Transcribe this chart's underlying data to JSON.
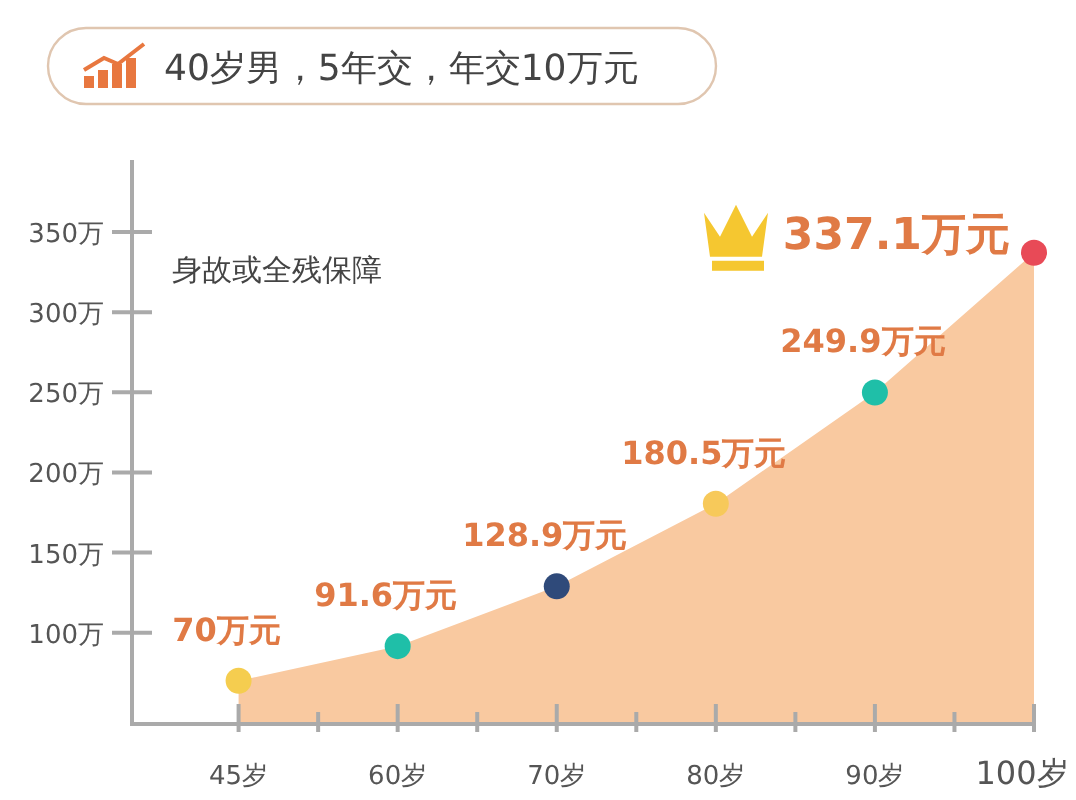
{
  "chart_data": {
    "type": "area",
    "title": "40岁男，5年交，年交10万元",
    "annotations": [
      "身故或全残保障"
    ],
    "categories": [
      "45岁",
      "60岁",
      "70岁",
      "80岁",
      "90岁",
      "100岁"
    ],
    "values": [
      70,
      91.6,
      128.9,
      180.5,
      249.9,
      337.1
    ],
    "value_labels": [
      "70万元",
      "91.6万元",
      "128.9万元",
      "180.5万元",
      "249.9万元",
      "337.1万元"
    ],
    "color": "#f9c9a0",
    "colors": [
      "#f5cd4f",
      "#1fbfa8",
      "#2f4a7a",
      "#f7c95a",
      "#1fbfa8",
      "#e84a57"
    ],
    "marker": "circle",
    "ylim": [
      43,
      395
    ],
    "yticks": [
      {
        "value": 100,
        "label": "100万"
      },
      {
        "value": 150,
        "label": "150万"
      },
      {
        "value": 200,
        "label": "200万"
      },
      {
        "value": 250,
        "label": "250万"
      },
      {
        "value": 300,
        "label": "300万"
      },
      {
        "value": 350,
        "label": "350万"
      }
    ],
    "grid": false
  }
}
